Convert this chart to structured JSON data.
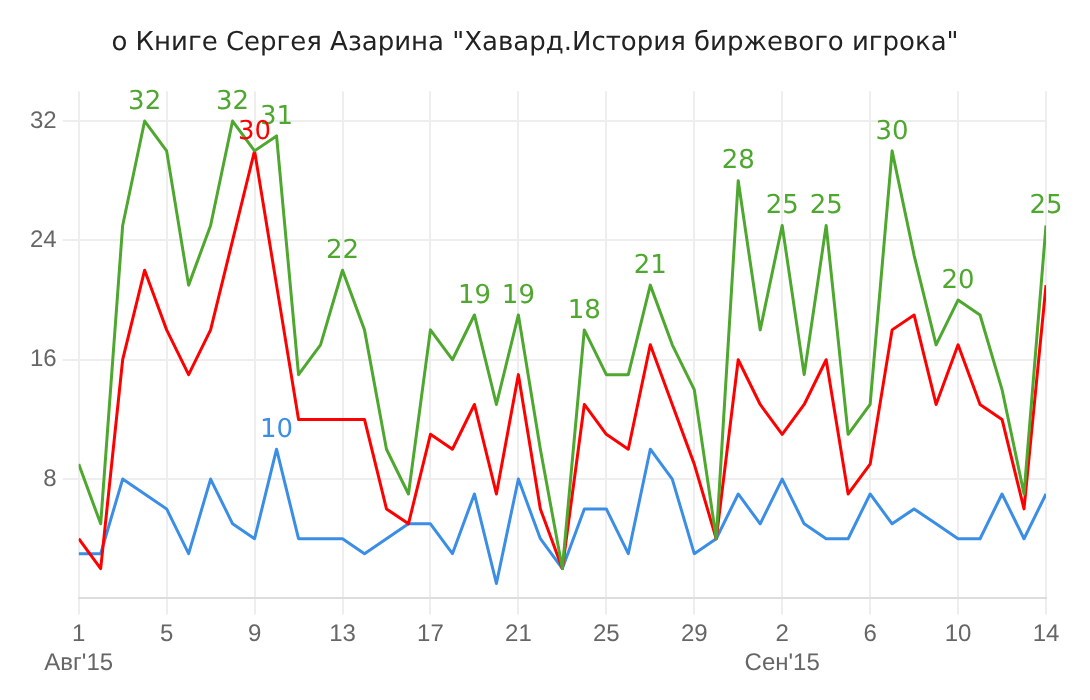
{
  "chart_data": {
    "type": "line",
    "title": "о Книге Сергея Азарина \"Хавард.История биржевого игрока\"",
    "x": [
      "2015-08-01",
      "2015-08-02",
      "2015-08-03",
      "2015-08-04",
      "2015-08-05",
      "2015-08-06",
      "2015-08-07",
      "2015-08-08",
      "2015-08-09",
      "2015-08-10",
      "2015-08-11",
      "2015-08-12",
      "2015-08-13",
      "2015-08-14",
      "2015-08-15",
      "2015-08-16",
      "2015-08-17",
      "2015-08-18",
      "2015-08-19",
      "2015-08-20",
      "2015-08-21",
      "2015-08-22",
      "2015-08-23",
      "2015-08-24",
      "2015-08-25",
      "2015-08-26",
      "2015-08-27",
      "2015-08-28",
      "2015-08-29",
      "2015-08-30",
      "2015-08-31",
      "2015-09-01",
      "2015-09-02",
      "2015-09-03",
      "2015-09-04",
      "2015-09-05",
      "2015-09-06",
      "2015-09-07",
      "2015-09-08",
      "2015-09-09",
      "2015-09-10",
      "2015-09-11",
      "2015-09-12",
      "2015-09-13",
      "2015-09-14"
    ],
    "series": [
      {
        "color": "#4ea72e",
        "values": [
          9,
          5,
          25,
          32,
          30,
          21,
          25,
          32,
          30,
          31,
          15,
          17,
          22,
          18,
          10,
          7,
          18,
          16,
          19,
          13,
          19,
          10,
          2,
          18,
          15,
          15,
          21,
          17,
          14,
          4,
          28,
          18,
          25,
          15,
          25,
          11,
          13,
          30,
          23,
          17,
          20,
          19,
          14,
          7,
          25
        ],
        "value_labels": [
          null,
          null,
          null,
          "32",
          null,
          null,
          null,
          "32",
          null,
          "31",
          null,
          null,
          "22",
          null,
          null,
          null,
          null,
          null,
          "19",
          null,
          "19",
          null,
          null,
          "18",
          null,
          null,
          "21",
          null,
          null,
          null,
          "28",
          null,
          "25",
          null,
          "25",
          null,
          null,
          "30",
          null,
          null,
          "20",
          null,
          null,
          null,
          "25"
        ]
      },
      {
        "color": "#ff0000",
        "values": [
          4,
          2,
          16,
          22,
          18,
          15,
          18,
          24,
          30,
          21,
          12,
          12,
          12,
          12,
          6,
          5,
          11,
          10,
          13,
          7,
          15,
          6,
          2,
          13,
          11,
          10,
          17,
          13,
          9,
          4,
          16,
          13,
          11,
          13,
          16,
          7,
          9,
          18,
          19,
          13,
          17,
          13,
          12,
          6,
          21
        ],
        "value_labels": [
          null,
          null,
          null,
          null,
          null,
          null,
          null,
          null,
          "30",
          null,
          null,
          null,
          null,
          null,
          null,
          null,
          null,
          null,
          null,
          null,
          null,
          null,
          null,
          null,
          null,
          null,
          null,
          null,
          null,
          null,
          null,
          null,
          null,
          null,
          null,
          null,
          null,
          null,
          null,
          null,
          null,
          null,
          null,
          null,
          null
        ]
      },
      {
        "color": "#3a8ee6",
        "values": [
          3,
          3,
          8,
          7,
          6,
          3,
          8,
          5,
          4,
          10,
          4,
          4,
          4,
          3,
          4,
          5,
          5,
          3,
          7,
          1,
          8,
          4,
          2,
          6,
          6,
          3,
          10,
          8,
          3,
          4,
          7,
          5,
          8,
          5,
          4,
          4,
          7,
          5,
          6,
          5,
          4,
          4,
          7,
          4,
          7
        ],
        "value_labels": [
          null,
          null,
          null,
          null,
          null,
          null,
          null,
          null,
          null,
          "10",
          null,
          null,
          null,
          null,
          null,
          null,
          null,
          null,
          null,
          null,
          null,
          null,
          null,
          null,
          null,
          null,
          null,
          null,
          null,
          null,
          null,
          null,
          null,
          null,
          null,
          null,
          null,
          null,
          null,
          null,
          null,
          null,
          null,
          null,
          null
        ]
      }
    ],
    "xlim": [
      "2015-08-01",
      "2015-09-14"
    ],
    "xticks": [
      {
        "value": "2015-08-01",
        "label": "1\nАвг'15"
      },
      {
        "value": "2015-08-05",
        "label": "5"
      },
      {
        "value": "2015-08-09",
        "label": "9"
      },
      {
        "value": "2015-08-13",
        "label": "13"
      },
      {
        "value": "2015-08-17",
        "label": "17"
      },
      {
        "value": "2015-08-21",
        "label": "21"
      },
      {
        "value": "2015-08-25",
        "label": "25"
      },
      {
        "value": "2015-08-29",
        "label": "29"
      },
      {
        "value": "2015-09-02",
        "label": "2\nСен'15"
      },
      {
        "value": "2015-09-06",
        "label": "6"
      },
      {
        "value": "2015-09-10",
        "label": "10"
      },
      {
        "value": "2015-09-14",
        "label": "14"
      }
    ],
    "ylim": [
      0,
      34
    ],
    "yticks": [
      8,
      16,
      24,
      32
    ],
    "grid": true,
    "legend": false,
    "marker": "none",
    "line_style": "solid"
  }
}
